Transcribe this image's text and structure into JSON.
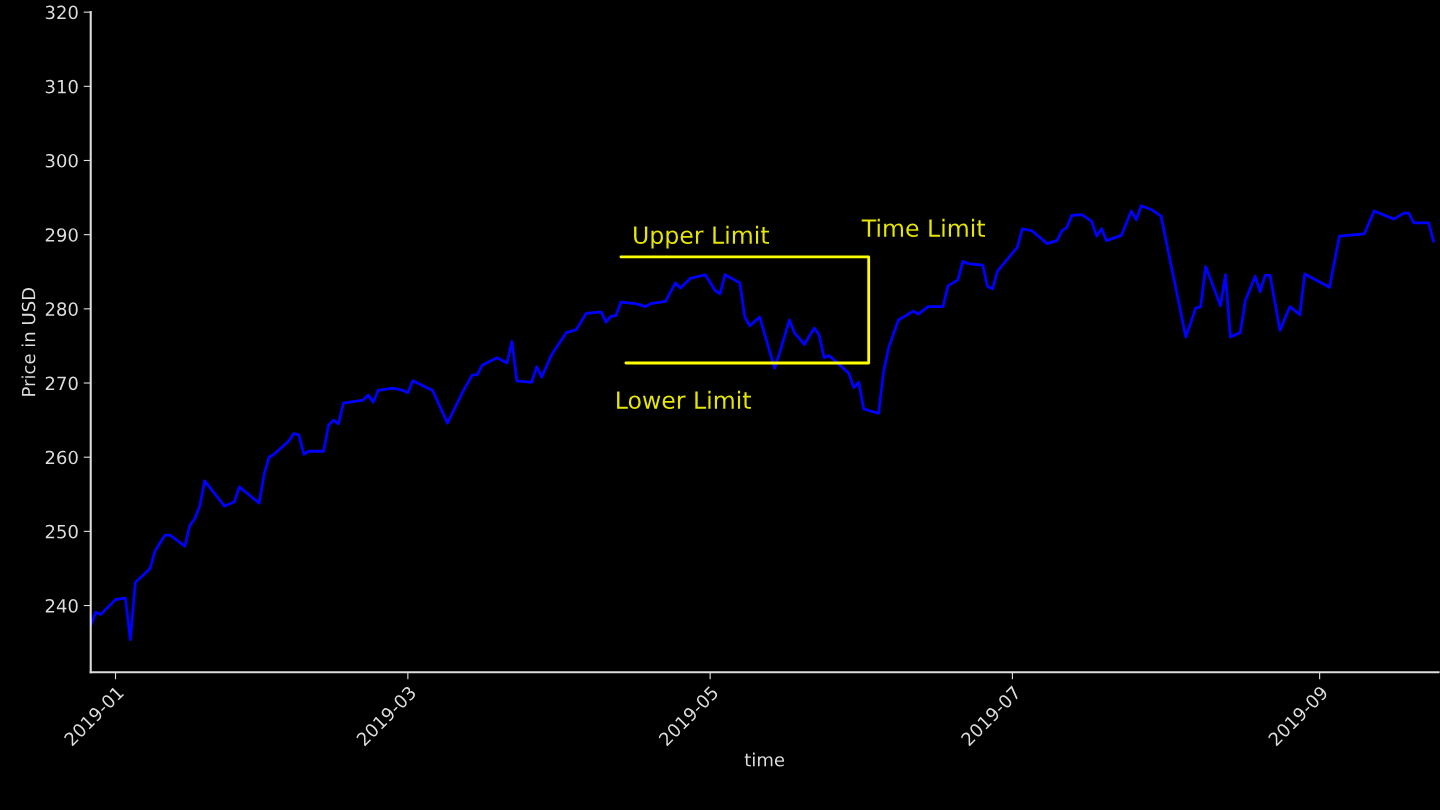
{
  "chart_data": {
    "type": "line",
    "xlabel": "time",
    "ylabel": "Price in USD",
    "xlim": [
      "2018-12-27",
      "2019-09-25"
    ],
    "ylim": [
      231,
      320
    ],
    "xticks": [
      {
        "value": "2019-01-01",
        "label": "2019-01"
      },
      {
        "value": "2019-03-01",
        "label": "2019-03"
      },
      {
        "value": "2019-05-01",
        "label": "2019-05"
      },
      {
        "value": "2019-07-01",
        "label": "2019-07"
      },
      {
        "value": "2019-09-01",
        "label": "2019-09"
      }
    ],
    "yticks": [
      240,
      250,
      260,
      270,
      280,
      290,
      300,
      310,
      320
    ],
    "series": [
      {
        "color": "#0000ff",
        "x": [
          "2018-12-27",
          "2018-12-28",
          "2018-12-29",
          "2019-01-01",
          "2019-01-03",
          "2019-01-04",
          "2019-01-05",
          "2019-01-08",
          "2019-01-09",
          "2019-01-11",
          "2019-01-12",
          "2019-01-15",
          "2019-01-16",
          "2019-01-17",
          "2019-01-18",
          "2019-01-19",
          "2019-01-23",
          "2019-01-25",
          "2019-01-26",
          "2019-01-30",
          "2019-01-31",
          "2019-02-01",
          "2019-02-02",
          "2019-02-05",
          "2019-02-06",
          "2019-02-07",
          "2019-02-08",
          "2019-02-09",
          "2019-02-12",
          "2019-02-13",
          "2019-02-14",
          "2019-02-15",
          "2019-02-16",
          "2019-02-20",
          "2019-02-21",
          "2019-02-22",
          "2019-02-23",
          "2019-02-26",
          "2019-02-28",
          "2019-03-01",
          "2019-03-02",
          "2019-03-06",
          "2019-03-09",
          "2019-03-12",
          "2019-03-14",
          "2019-03-15",
          "2019-03-16",
          "2019-03-19",
          "2019-03-21",
          "2019-03-22",
          "2019-03-23",
          "2019-03-26",
          "2019-03-27",
          "2019-03-28",
          "2019-03-30",
          "2019-04-02",
          "2019-04-04",
          "2019-04-06",
          "2019-04-09",
          "2019-04-10",
          "2019-04-11",
          "2019-04-12",
          "2019-04-13",
          "2019-04-16",
          "2019-04-18",
          "2019-04-19",
          "2019-04-22",
          "2019-04-24",
          "2019-04-25",
          "2019-04-27",
          "2019-04-30",
          "2019-05-02",
          "2019-05-03",
          "2019-05-04",
          "2019-05-07",
          "2019-05-08",
          "2019-05-09",
          "2019-05-11",
          "2019-05-14",
          "2019-05-15",
          "2019-05-17",
          "2019-05-18",
          "2019-05-20",
          "2019-05-22",
          "2019-05-23",
          "2019-05-24",
          "2019-05-25",
          "2019-05-29",
          "2019-05-30",
          "2019-05-31",
          "2019-06-01",
          "2019-06-04",
          "2019-06-05",
          "2019-06-06",
          "2019-06-08",
          "2019-06-11",
          "2019-06-12",
          "2019-06-14",
          "2019-06-17",
          "2019-06-18",
          "2019-06-20",
          "2019-06-21",
          "2019-06-22",
          "2019-06-25",
          "2019-06-26",
          "2019-06-27",
          "2019-06-28",
          "2019-07-02",
          "2019-07-03",
          "2019-07-05",
          "2019-07-08",
          "2019-07-10",
          "2019-07-11",
          "2019-07-12",
          "2019-07-13",
          "2019-07-15",
          "2019-07-17",
          "2019-07-18",
          "2019-07-19",
          "2019-07-20",
          "2019-07-23",
          "2019-07-25",
          "2019-07-26",
          "2019-07-27",
          "2019-07-29",
          "2019-07-31",
          "2019-08-05",
          "2019-08-07",
          "2019-08-08",
          "2019-08-09",
          "2019-08-10",
          "2019-08-12",
          "2019-08-13",
          "2019-08-14",
          "2019-08-16",
          "2019-08-17",
          "2019-08-19",
          "2019-08-20",
          "2019-08-21",
          "2019-08-22",
          "2019-08-24",
          "2019-08-26",
          "2019-08-28",
          "2019-08-29",
          "2019-09-03",
          "2019-09-05",
          "2019-09-10",
          "2019-09-12",
          "2019-09-16",
          "2019-09-18",
          "2019-09-19",
          "2019-09-20",
          "2019-09-23",
          "2019-09-24"
        ],
        "values": [
          237.3,
          239.1,
          238.8,
          240.8,
          241.0,
          235.4,
          243.1,
          245.0,
          247.4,
          249.5,
          249.5,
          248.0,
          250.8,
          251.7,
          253.4,
          256.8,
          253.4,
          254.0,
          256.0,
          253.8,
          257.7,
          260.0,
          260.4,
          262.2,
          263.2,
          263.0,
          260.4,
          260.8,
          260.8,
          264.3,
          265.0,
          264.5,
          267.3,
          267.7,
          268.4,
          267.4,
          269.0,
          269.3,
          269.0,
          268.7,
          270.3,
          269.0,
          264.6,
          268.7,
          271.1,
          271.1,
          272.4,
          273.4,
          272.7,
          275.6,
          270.3,
          270.1,
          272.2,
          270.8,
          273.8,
          276.8,
          277.2,
          279.4,
          279.6,
          278.2,
          279.0,
          279.1,
          280.9,
          280.7,
          280.3,
          280.7,
          281.0,
          283.5,
          282.8,
          284.1,
          284.6,
          282.5,
          282.0,
          284.6,
          283.5,
          278.9,
          277.7,
          278.9,
          272.0,
          274.0,
          278.5,
          276.8,
          275.2,
          277.4,
          276.5,
          273.4,
          273.7,
          271.3,
          269.4,
          270.1,
          266.5,
          265.9,
          271.5,
          274.7,
          278.5,
          279.7,
          279.3,
          280.3,
          280.3,
          283.1,
          283.9,
          286.4,
          286.1,
          285.9,
          283.0,
          282.7,
          285.1,
          288.3,
          290.8,
          290.5,
          288.8,
          289.2,
          290.5,
          291.0,
          292.6,
          292.7,
          291.8,
          289.8,
          290.8,
          289.2,
          289.9,
          293.2,
          292.0,
          293.9,
          293.4,
          292.5,
          276.2,
          280.1,
          280.3,
          285.7,
          284.0,
          280.4,
          284.6,
          276.2,
          276.8,
          281.1,
          284.4,
          282.3,
          284.5,
          284.5,
          277.1,
          280.3,
          279.2,
          284.7,
          282.9,
          289.8,
          290.1,
          293.2,
          292.1,
          292.9,
          292.9,
          291.6,
          291.6,
          289.1
        ]
      },
      {
        "color": "#ffff00",
        "x": [
          "2019-04-13",
          "2019-06-02",
          "2019-06-02",
          "2019-04-14"
        ],
        "values": [
          287.0,
          287.0,
          272.7,
          272.7
        ]
      }
    ],
    "annotations": [
      {
        "text": "Upper Limit",
        "x": "2019-04-13",
        "y": 287.0
      },
      {
        "text": "Lower Limit",
        "x": "2019-04-14",
        "y": 272.7
      },
      {
        "text": "Time Limit",
        "x": "2019-06-02",
        "y": 287.0
      }
    ]
  }
}
